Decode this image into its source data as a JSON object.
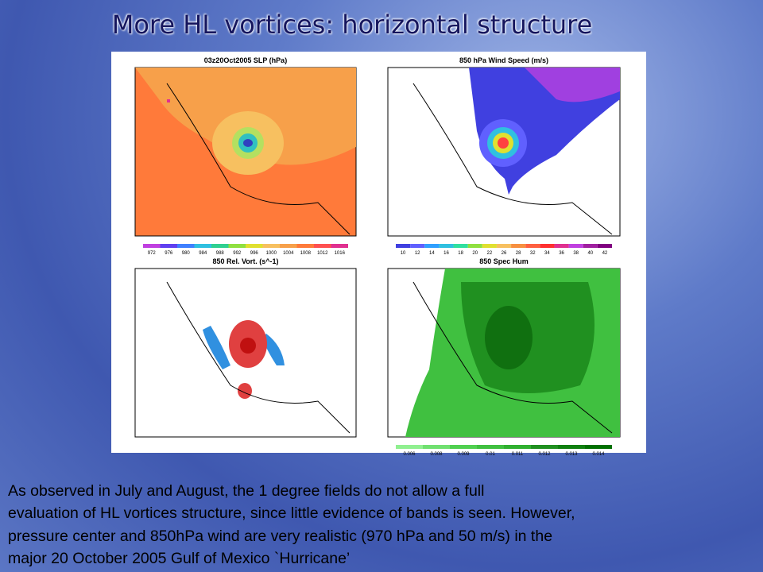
{
  "title": "More HL vortices: horizontal structure",
  "figure": {
    "panels": [
      {
        "title": "03z20Oct2005 SLP (hPa)",
        "colorbar_labels": [
          "972",
          "976",
          "980",
          "984",
          "988",
          "992",
          "996",
          "1000",
          "1004",
          "1008",
          "1012",
          "1016"
        ]
      },
      {
        "title": "850 hPa Wind Speed (m/s)",
        "colorbar_labels": [
          "10",
          "12",
          "14",
          "16",
          "18",
          "20",
          "22",
          "26",
          "28",
          "32",
          "34",
          "36",
          "38",
          "40",
          "42"
        ]
      },
      {
        "title": "850 Rel. Vort. (s^-1)",
        "colorbar_labels": []
      },
      {
        "title": "850 Spec Hum",
        "colorbar_labels": [
          "0.006",
          "0.008",
          "0.009",
          "0.01",
          "0.011",
          "0.012",
          "0.013",
          "0.014"
        ]
      }
    ]
  },
  "caption": [
    "As observed  in July and August, the 1 degree fields do not allow a full",
    "evaluation of HL vortices structure, since little evidence of bands is seen. However,",
    "pressure center and 850hPa wind are very realistic (970 hPa and 50 m/s) in the",
    "major 20 October 2005  Gulf of Mexico `Hurricane’"
  ]
}
